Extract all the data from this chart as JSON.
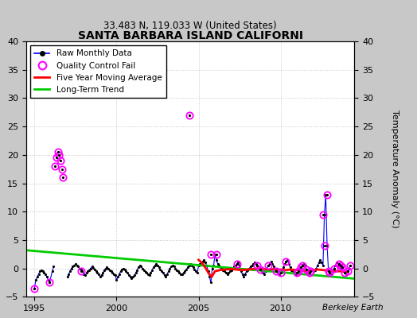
{
  "title": "SANTA BARBARA ISLAND CALIFORNI",
  "subtitle": "33.483 N, 119.033 W (United States)",
  "ylabel_right": "Temperature Anomaly (°C)",
  "credit": "Berkeley Earth",
  "xlim": [
    1994.5,
    2014.5
  ],
  "ylim": [
    -5,
    40
  ],
  "yticks": [
    -5,
    0,
    5,
    10,
    15,
    20,
    25,
    30,
    35,
    40
  ],
  "xticks": [
    1995,
    2000,
    2005,
    2010
  ],
  "background_color": "#c8c8c8",
  "plot_bg_color": "#ffffff",
  "raw_color": "#0000ff",
  "qc_color": "#ff00ff",
  "moving_avg_color": "#ff0000",
  "trend_color": "#00cc00",
  "raw_monthly_x": [
    1995.0,
    1995.083,
    1995.167,
    1995.25,
    1995.333,
    1995.417,
    1995.5,
    1995.583,
    1995.667,
    1995.75,
    1995.833,
    1995.917,
    1996.083,
    1996.167,
    1997.0,
    1997.083,
    1997.167,
    1997.25,
    1997.333,
    1997.417,
    1997.5,
    1997.583,
    1997.667,
    1997.75,
    1997.833,
    1997.917,
    1998.0,
    1998.083,
    1998.167,
    1998.25,
    1998.333,
    1998.417,
    1998.5,
    1998.583,
    1998.667,
    1998.75,
    1998.833,
    1998.917,
    1999.0,
    1999.083,
    1999.167,
    1999.25,
    1999.333,
    1999.417,
    1999.5,
    1999.583,
    1999.667,
    1999.75,
    1999.833,
    1999.917,
    2000.0,
    2000.083,
    2000.167,
    2000.25,
    2000.333,
    2000.417,
    2000.5,
    2000.583,
    2000.667,
    2000.75,
    2000.833,
    2000.917,
    2001.0,
    2001.083,
    2001.167,
    2001.25,
    2001.333,
    2001.417,
    2001.5,
    2001.583,
    2001.667,
    2001.75,
    2001.833,
    2001.917,
    2002.0,
    2002.083,
    2002.167,
    2002.25,
    2002.333,
    2002.417,
    2002.5,
    2002.583,
    2002.667,
    2002.75,
    2002.833,
    2002.917,
    2003.0,
    2003.083,
    2003.167,
    2003.25,
    2003.333,
    2003.417,
    2003.5,
    2003.583,
    2003.667,
    2003.75,
    2003.833,
    2003.917,
    2004.0,
    2004.083,
    2004.167,
    2004.25,
    2004.333,
    2004.417,
    2004.5,
    2004.583,
    2004.667,
    2004.75,
    2004.833,
    2004.917,
    2005.0,
    2005.083,
    2005.167,
    2005.25,
    2005.333,
    2005.417,
    2005.5,
    2005.583,
    2005.667,
    2005.75,
    2005.833,
    2005.917,
    2006.0,
    2006.083,
    2006.167,
    2006.25,
    2006.333,
    2006.417,
    2006.5,
    2006.583,
    2006.667,
    2006.75,
    2006.833,
    2006.917,
    2007.0,
    2007.083,
    2007.167,
    2007.25,
    2007.333,
    2007.417,
    2007.5,
    2007.583,
    2007.667,
    2007.75,
    2007.833,
    2007.917,
    2008.0,
    2008.083,
    2008.167,
    2008.25,
    2008.333,
    2008.417,
    2008.5,
    2008.583,
    2008.667,
    2008.75,
    2008.833,
    2008.917,
    2009.0,
    2009.083,
    2009.167,
    2009.25,
    2009.333,
    2009.417,
    2009.5,
    2009.583,
    2009.667,
    2009.75,
    2009.833,
    2009.917,
    2010.0,
    2010.083,
    2010.167,
    2010.25,
    2010.333,
    2010.417,
    2010.5,
    2010.583,
    2010.667,
    2010.75,
    2010.833,
    2010.917,
    2011.0,
    2011.083,
    2011.167,
    2011.25,
    2011.333,
    2011.417,
    2011.5,
    2011.583,
    2011.667,
    2011.75,
    2011.833,
    2011.917,
    2012.0,
    2012.083,
    2012.167,
    2012.25,
    2012.333,
    2012.417,
    2012.5,
    2012.583,
    2012.667,
    2012.75,
    2012.833,
    2012.917,
    2013.0,
    2013.083,
    2013.167,
    2013.25,
    2013.333,
    2013.417,
    2013.5,
    2013.583,
    2013.667,
    2013.75,
    2013.833,
    2013.917,
    2014.0,
    2014.083,
    2014.167,
    2014.25
  ],
  "raw_monthly_y": [
    -3.5,
    -2.0,
    -1.5,
    -1.0,
    -0.5,
    -0.3,
    -0.5,
    -0.8,
    -1.0,
    -1.5,
    -2.0,
    -2.5,
    -0.5,
    0.3,
    -1.5,
    -1.0,
    -0.5,
    0.0,
    0.3,
    0.5,
    0.8,
    0.5,
    0.3,
    0.0,
    -0.2,
    -0.5,
    -1.0,
    -1.2,
    -0.8,
    -0.5,
    -0.3,
    0.0,
    0.3,
    0.1,
    -0.2,
    -0.5,
    -0.8,
    -1.0,
    -1.5,
    -1.2,
    -0.8,
    -0.3,
    0.0,
    0.2,
    0.0,
    -0.3,
    -0.5,
    -0.8,
    -1.0,
    -1.2,
    -2.0,
    -1.5,
    -1.0,
    -0.5,
    -0.2,
    0.0,
    -0.2,
    -0.5,
    -0.8,
    -1.2,
    -1.5,
    -1.8,
    -1.5,
    -1.2,
    -0.8,
    -0.3,
    0.2,
    0.5,
    0.3,
    0.0,
    -0.3,
    -0.6,
    -0.8,
    -1.0,
    -1.2,
    -0.8,
    -0.3,
    0.2,
    0.5,
    0.8,
    0.5,
    0.2,
    -0.2,
    -0.5,
    -0.8,
    -1.2,
    -1.5,
    -1.0,
    -0.5,
    0.0,
    0.3,
    0.5,
    0.3,
    0.0,
    -0.3,
    -0.5,
    -0.7,
    -1.0,
    -1.0,
    -0.8,
    -0.5,
    -0.2,
    0.2,
    0.5,
    0.8,
    0.5,
    0.2,
    -0.2,
    -0.5,
    -0.8,
    0.5,
    0.8,
    1.0,
    1.2,
    1.5,
    1.0,
    0.5,
    -0.5,
    -1.5,
    -2.5,
    0.0,
    0.5,
    2.5,
    1.5,
    0.8,
    0.5,
    0.2,
    0.0,
    -0.3,
    -0.5,
    -0.8,
    -1.0,
    -0.8,
    -0.5,
    -0.3,
    0.0,
    0.3,
    0.5,
    0.8,
    1.0,
    0.5,
    -0.5,
    -1.0,
    -1.5,
    -1.0,
    -0.5,
    -0.3,
    0.0,
    0.3,
    0.5,
    0.8,
    1.0,
    0.8,
    0.5,
    0.2,
    -0.2,
    -0.5,
    -0.8,
    -1.0,
    -0.5,
    0.0,
    0.5,
    0.8,
    1.2,
    0.8,
    0.3,
    -0.2,
    -0.5,
    -0.8,
    -1.2,
    -0.8,
    -0.3,
    0.2,
    0.8,
    1.2,
    1.5,
    0.8,
    0.2,
    -0.3,
    -0.5,
    -0.8,
    -1.0,
    -0.8,
    -0.5,
    -0.2,
    0.2,
    0.5,
    0.8,
    0.5,
    -0.2,
    -0.5,
    -0.8,
    -0.5,
    -0.3,
    -0.5,
    -0.3,
    0.0,
    0.5,
    1.0,
    1.5,
    1.0,
    0.5,
    9.5,
    13.0,
    4.0,
    -0.5,
    -0.8,
    -1.0,
    -0.5,
    0.0,
    0.5,
    1.0,
    0.8,
    0.5,
    0.2,
    -0.2,
    -0.5,
    -0.8,
    -1.0,
    -0.5,
    0.0,
    0.5
  ],
  "qc_dots_x": [
    1995.0,
    1995.917,
    1996.25,
    1996.333,
    1996.417,
    1996.5,
    1996.583,
    1996.667,
    1996.75,
    1997.833,
    2004.417,
    2005.75,
    2006.083,
    2007.333,
    2008.583,
    2008.75,
    2009.25,
    2009.75,
    2010.0,
    2010.333,
    2011.0,
    2011.083,
    2011.25,
    2011.333,
    2011.583,
    2011.75,
    2011.833,
    2012.583,
    2012.667,
    2012.833,
    2012.917,
    2013.0,
    2013.25,
    2013.583,
    2013.667,
    2013.75,
    2013.917,
    2014.083,
    2014.25
  ],
  "qc_dots_y": [
    -3.5,
    -2.5,
    18.0,
    19.5,
    20.5,
    20.0,
    19.0,
    17.5,
    16.0,
    -0.5,
    27.0,
    2.5,
    2.5,
    0.8,
    0.5,
    -0.2,
    0.5,
    -0.5,
    -0.8,
    1.2,
    -0.8,
    -0.5,
    0.2,
    0.5,
    -0.2,
    -0.8,
    -0.5,
    9.5,
    4.0,
    13.0,
    -0.5,
    -0.8,
    0.0,
    0.8,
    0.5,
    0.2,
    -0.8,
    -0.5,
    0.5
  ],
  "moving_avg_x": [
    2005.0,
    2005.2,
    2005.4,
    2005.6,
    2005.8,
    2006.0,
    2006.3,
    2006.6,
    2007.0,
    2007.3,
    2007.6,
    2008.0,
    2008.3,
    2008.6,
    2009.0,
    2009.3,
    2009.6,
    2010.0,
    2010.3,
    2010.6,
    2011.0,
    2011.3,
    2011.6,
    2012.0,
    2012.3,
    2012.6,
    2013.0,
    2013.3,
    2013.6,
    2014.0
  ],
  "moving_avg_y": [
    1.5,
    1.0,
    0.2,
    -0.8,
    -1.5,
    -0.5,
    -0.3,
    -0.2,
    -0.1,
    -0.2,
    -0.3,
    -0.2,
    -0.1,
    0.0,
    -0.1,
    -0.2,
    -0.1,
    -0.2,
    -0.3,
    -0.2,
    -0.3,
    -0.4,
    -0.5,
    -0.3,
    -0.2,
    -0.3,
    -0.4,
    -0.5,
    -0.5,
    -0.6
  ],
  "trend_x": [
    1994.5,
    2014.5
  ],
  "trend_y": [
    3.2,
    -1.8
  ]
}
